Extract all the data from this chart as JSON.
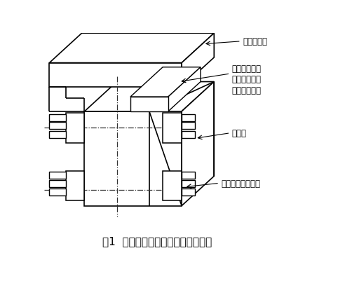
{
  "title": "图1  长球磨机半齿圈接头组合示意图",
  "title_fontsize": 11,
  "labels": {
    "label1": "大齿圈齿面",
    "label2": "制造半齿圈时",
    "label3": "铣接头斜面设",
    "label4": "计的退刀凹槽",
    "label5": "斜接面",
    "label6": "接头法兰连接螺丝"
  },
  "line_color": "#000000",
  "bg_color": "#ffffff"
}
